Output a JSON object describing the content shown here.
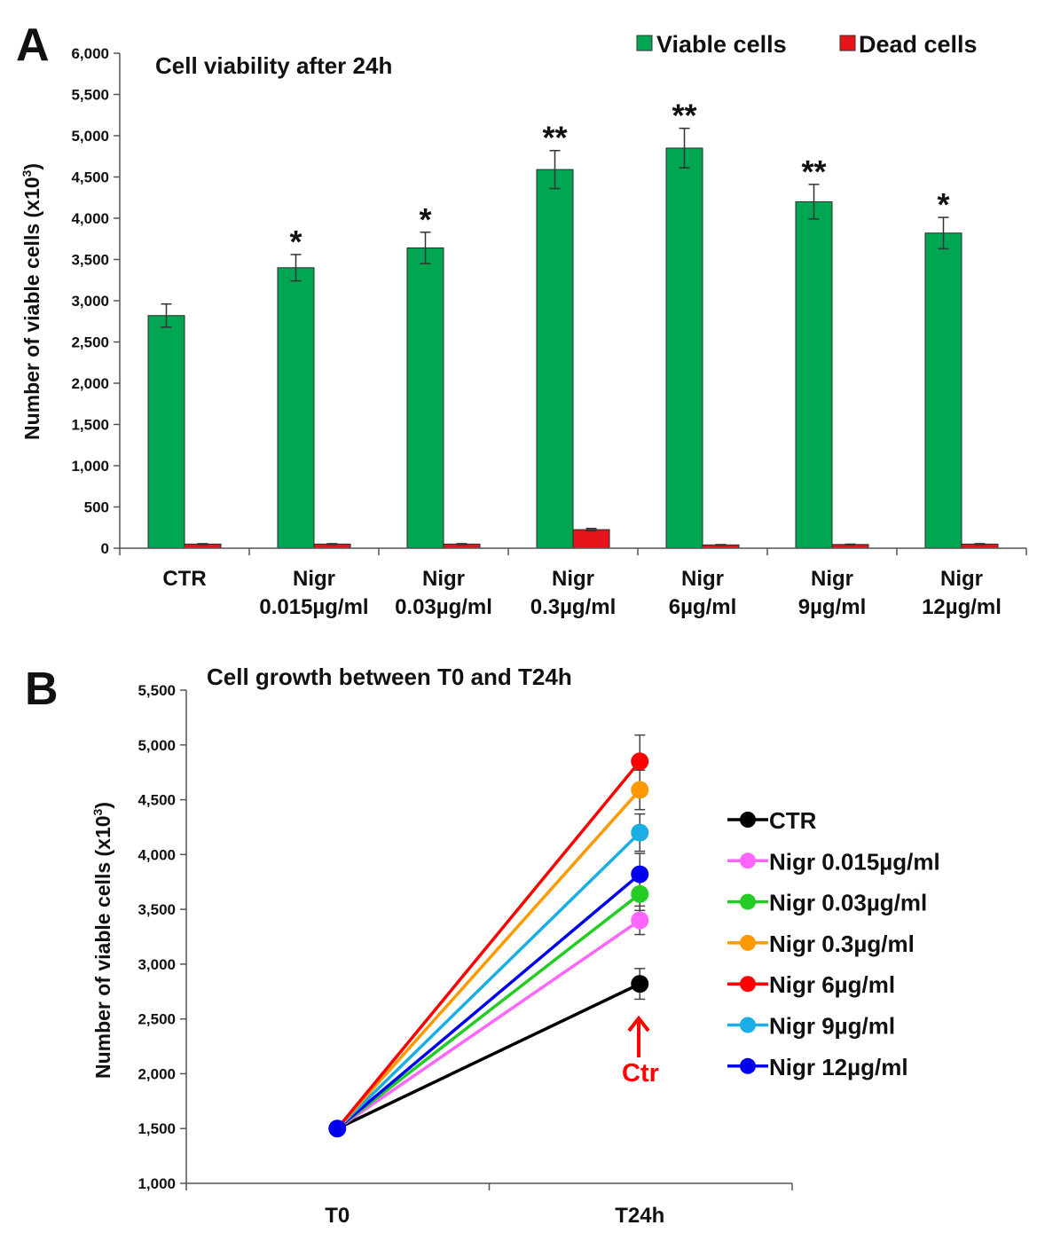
{
  "chart_data": [
    {
      "panel": "A",
      "type": "bar",
      "title": "Cell viability  after 24h",
      "ylabel": "Number of viable cells (x10",
      "ylabel_sup": "3",
      "ylabel_close": ")",
      "ylim": [
        0,
        6000
      ],
      "yticks": [
        0,
        500,
        1000,
        1500,
        2000,
        2500,
        3000,
        3500,
        4000,
        4500,
        5000,
        5500,
        6000
      ],
      "ytick_labels": [
        "0",
        "500",
        "1,000",
        "1,500",
        "2,000",
        "2,500",
        "3,000",
        "3,500",
        "4,000",
        "4,500",
        "5,000",
        "5,500",
        "6,000"
      ],
      "legend_position": "top-right",
      "categories": [
        {
          "line1": "CTR",
          "line2": ""
        },
        {
          "line1": "Nigr",
          "line2": "0.015µg/ml"
        },
        {
          "line1": "Nigr",
          "line2": "0.03µg/ml"
        },
        {
          "line1": "Nigr",
          "line2": "0.3µg/ml"
        },
        {
          "line1": "Nigr",
          "line2": "6µg/ml"
        },
        {
          "line1": "Nigr",
          "line2": "9µg/ml"
        },
        {
          "line1": "Nigr",
          "line2": "12µg/ml"
        }
      ],
      "series": [
        {
          "name": "Viable cells",
          "color": "#00a651",
          "values": [
            2820,
            3400,
            3640,
            4590,
            4850,
            4200,
            3820
          ],
          "errors": [
            140,
            160,
            190,
            230,
            240,
            210,
            190
          ]
        },
        {
          "name": "Dead cells",
          "color": "#e8141b",
          "values": [
            50,
            50,
            50,
            225,
            40,
            45,
            50
          ],
          "errors": [
            5,
            5,
            5,
            15,
            4,
            4,
            5
          ]
        }
      ],
      "significance": [
        "",
        "*",
        "*",
        "**",
        "**",
        "**",
        "*"
      ]
    },
    {
      "panel": "B",
      "type": "line",
      "title": "Cell growth between T0 and T24h",
      "ylabel": "Number of viable cells (x10",
      "ylabel_sup": "3",
      "ylabel_close": ")",
      "ylim": [
        1000,
        5500
      ],
      "yticks": [
        1000,
        1500,
        2000,
        2500,
        3000,
        3500,
        4000,
        4500,
        5000,
        5500
      ],
      "ytick_labels": [
        "1,000",
        "1,500",
        "2,000",
        "2,500",
        "3,000",
        "3,500",
        "4,000",
        "4,500",
        "5,000",
        "5,500"
      ],
      "x": [
        "T0",
        "T24h"
      ],
      "legend_position": "right",
      "series": [
        {
          "name": "CTR",
          "color": "#000000",
          "values": [
            1500,
            2820
          ],
          "error": 140
        },
        {
          "name": "Nigr 0.015µg/ml",
          "color": "#ff66ff",
          "values": [
            1500,
            3400
          ],
          "error": 130
        },
        {
          "name": "Nigr 0.03µg/ml",
          "color": "#22cc22",
          "values": [
            1500,
            3640
          ],
          "error": 150
        },
        {
          "name": "Nigr 0.3µg/ml",
          "color": "#ff9900",
          "values": [
            1500,
            4590
          ],
          "error": 180
        },
        {
          "name": "Nigr 6µg/ml",
          "color": "#ff0000",
          "values": [
            1500,
            4850
          ],
          "error": 240
        },
        {
          "name": "Nigr 9µg/ml",
          "color": "#1aaee5",
          "values": [
            1500,
            4200
          ],
          "error": 170
        },
        {
          "name": "Nigr 12µg/ml",
          "color": "#0000ee",
          "values": [
            1500,
            3820
          ],
          "error": 190
        }
      ],
      "annotation": {
        "text": "Ctr",
        "color": "#ff0000"
      }
    }
  ]
}
